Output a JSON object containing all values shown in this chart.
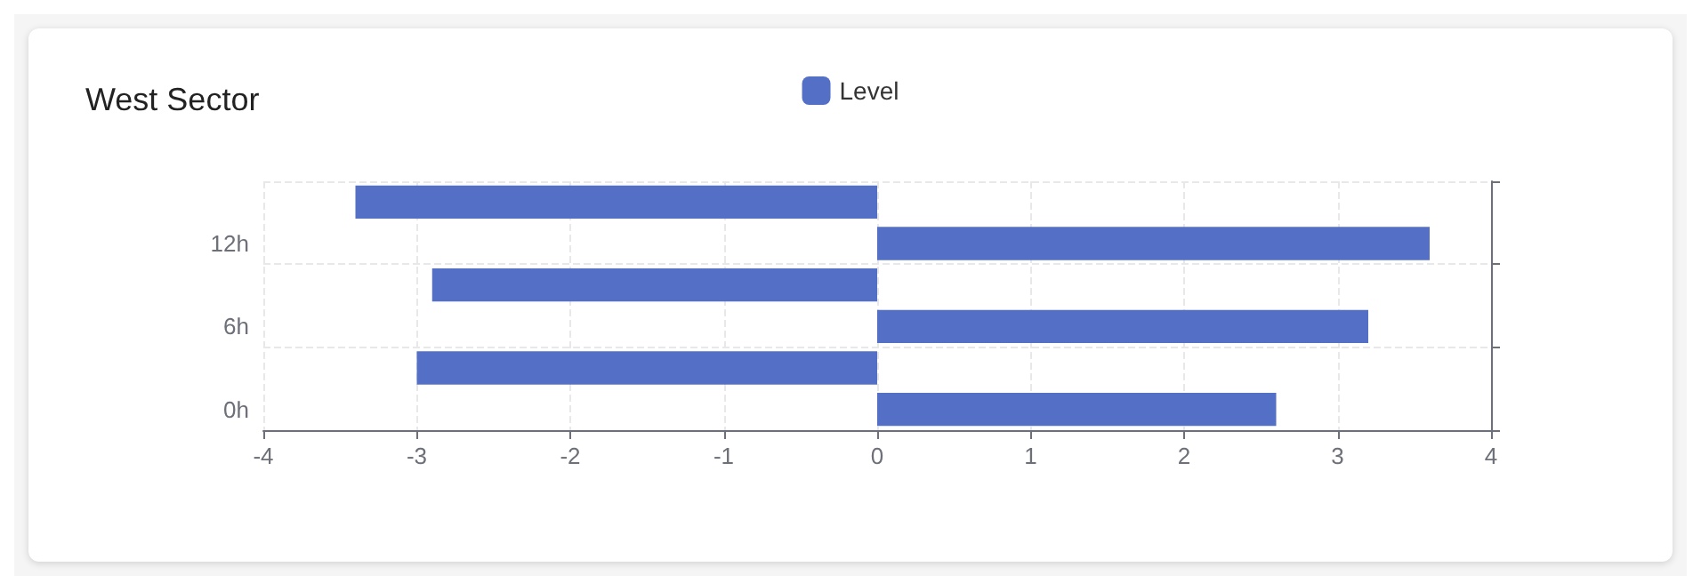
{
  "chart_data": {
    "type": "bar",
    "title": "West Sector",
    "orientation": "horizontal",
    "categories": [
      null,
      "12h",
      null,
      "6h",
      null,
      "0h"
    ],
    "series": [
      {
        "name": "Level",
        "color": "#5470c6",
        "values": [
          -3.4,
          3.6,
          -2.9,
          3.2,
          -3.0,
          2.6
        ]
      }
    ],
    "xlim": [
      -4,
      4
    ],
    "xticks": [
      -4,
      -3,
      -2,
      -1,
      0,
      1,
      2,
      3,
      4
    ],
    "grid": true,
    "legend": "top"
  }
}
